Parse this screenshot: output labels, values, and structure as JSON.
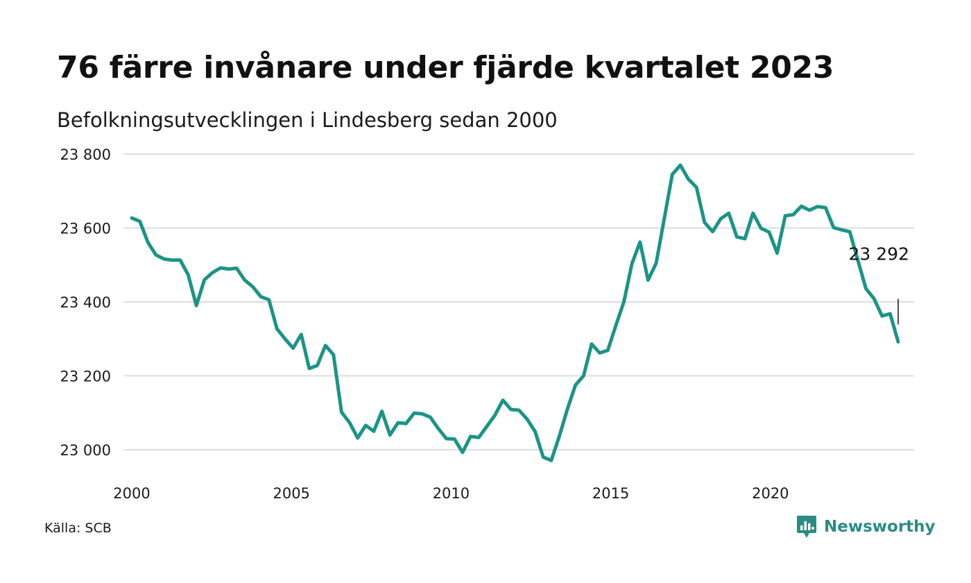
{
  "header": {
    "title": "76 färre invånare under fjärde kvartalet 2023",
    "subtitle": "Befolkningsutvecklingen i Lindesberg sedan 2000"
  },
  "footer": {
    "source": "Källa: SCB",
    "brand": "Newsworthy"
  },
  "colors": {
    "line": "#1b9486",
    "grid": "#dddddd",
    "brand": "#2b8c83"
  },
  "icons": {
    "brand_logo": "newsworthy-logo-icon"
  },
  "chart_data": {
    "type": "line",
    "title": "76 färre invånare under fjärde kvartalet 2023",
    "subtitle": "Befolkningsutvecklingen i Lindesberg sedan 2000",
    "xlabel": "",
    "ylabel": "",
    "grid": "horizontal",
    "x_ticks": [
      2000,
      2005,
      2010,
      2015,
      2020
    ],
    "y_ticks": [
      23000,
      23200,
      23400,
      23600,
      23800
    ],
    "y_tick_labels": [
      "23 000",
      "23 200",
      "23 400",
      "23 600",
      "23 800"
    ],
    "x_tick_labels": [
      "2000",
      "2005",
      "2010",
      "2015",
      "2020"
    ],
    "xlim": [
      2000.0,
      2024.0
    ],
    "ylim": [
      22950,
      23800
    ],
    "x_unit": "year (quarterly, 2000 Q1 – 2023 Q4)",
    "end_label": "23 292",
    "series": [
      {
        "values": [
          23627,
          23618,
          23561,
          23527,
          23516,
          23513,
          23513,
          23473,
          23390,
          23460,
          23479,
          23492,
          23489,
          23491,
          23459,
          23441,
          23414,
          23406,
          23327,
          23300,
          23275,
          23312,
          23220,
          23228,
          23282,
          23257,
          23102,
          23073,
          23032,
          23066,
          23050,
          23104,
          23040,
          23073,
          23071,
          23099,
          23097,
          23088,
          23057,
          23030,
          23029,
          22993,
          23036,
          23033,
          23063,
          23093,
          23134,
          23109,
          23107,
          23083,
          23049,
          22980,
          22971,
          23037,
          23110,
          23175,
          23200,
          23286,
          23262,
          23269,
          23336,
          23400,
          23504,
          23562,
          23459,
          23505,
          23625,
          23745,
          23770,
          23732,
          23710,
          23615,
          23590,
          23625,
          23640,
          23576,
          23571,
          23640,
          23599,
          23589,
          23532,
          23633,
          23636,
          23659,
          23648,
          23658,
          23655,
          23601,
          23595,
          23590,
          23513,
          23436,
          23409,
          23362,
          23368,
          23292
        ]
      }
    ]
  }
}
